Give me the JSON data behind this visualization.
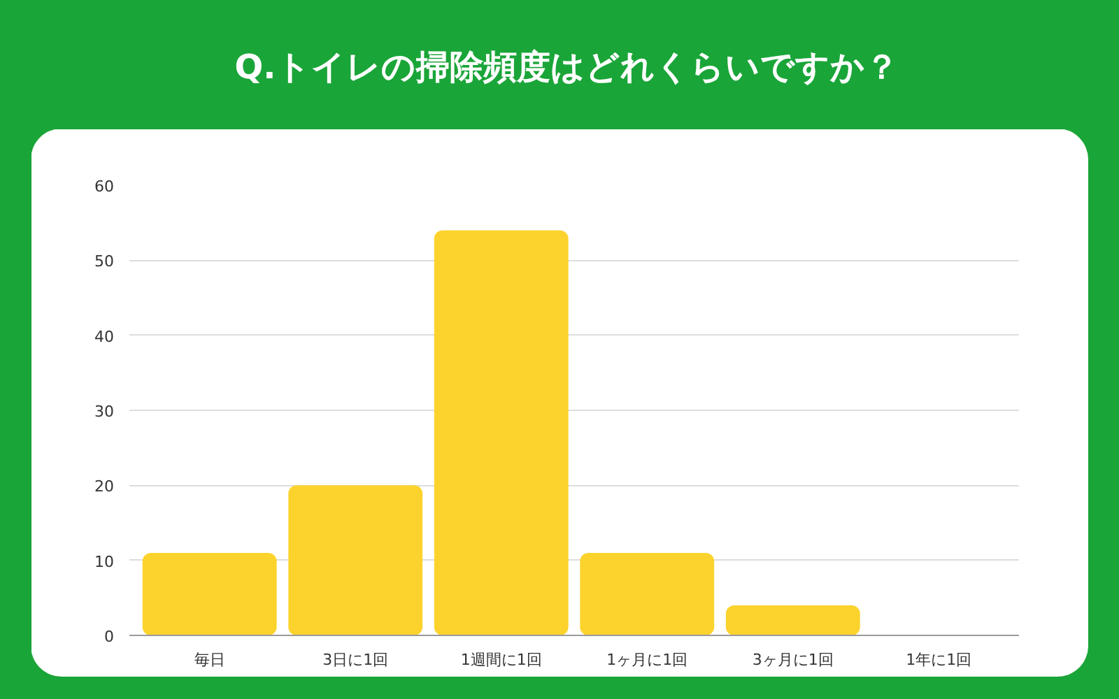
{
  "chart_data": {
    "type": "bar",
    "title": "Q.トイレの掃除頻度はどれくらいですか？",
    "categories": [
      "毎日",
      "3日に1回",
      "1週間に1回",
      "1ヶ月に1回",
      "3ヶ月に1回",
      "1年に1回"
    ],
    "values": [
      11,
      20,
      54,
      11,
      4,
      0
    ],
    "color": "#fcd32d",
    "ylim": [
      0,
      60
    ],
    "yticks": [
      0,
      10,
      20,
      30,
      40,
      50,
      60
    ],
    "grid": "y"
  }
}
